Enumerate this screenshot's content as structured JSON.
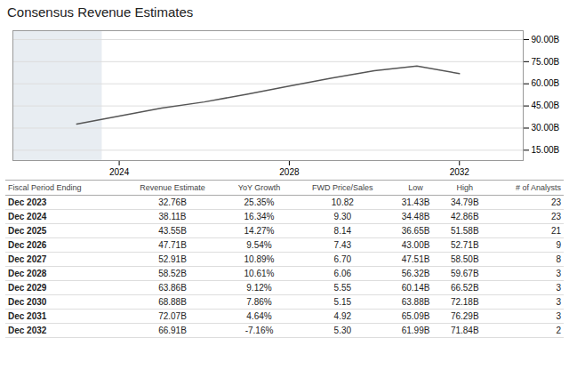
{
  "chart_data": {
    "type": "line",
    "title": "Consensus Revenue Estimates",
    "x": [
      2023,
      2024,
      2025,
      2026,
      2027,
      2028,
      2029,
      2030,
      2031,
      2032
    ],
    "values": [
      32.76,
      38.11,
      43.55,
      47.71,
      52.91,
      58.52,
      63.86,
      68.88,
      72.07,
      66.91
    ],
    "color": "#555555",
    "shaded_x": [
      2021.5,
      2023.6
    ],
    "xlim": [
      2021.5,
      2033.5
    ],
    "xticks": [
      2024,
      2028,
      2032
    ],
    "ylim": [
      8,
      96
    ],
    "yticks": [
      {
        "value": 15,
        "label": "15.00B"
      },
      {
        "value": 30,
        "label": "30.00B"
      },
      {
        "value": 45,
        "label": "45.00B"
      },
      {
        "value": 60,
        "label": "60.00B"
      },
      {
        "value": 75,
        "label": "75.00B"
      },
      {
        "value": 90,
        "label": "90.00B"
      }
    ],
    "grid": true,
    "table": {
      "headers": [
        "Fiscal Period Ending",
        "Revenue Estimate",
        "YoY Growth",
        "FWD Price/Sales",
        "Low",
        "High",
        "# of Analysts"
      ],
      "rows": [
        [
          "Dec 2023",
          "32.76B",
          "25.35%",
          "10.82",
          "31.43B",
          "34.79B",
          "23"
        ],
        [
          "Dec 2024",
          "38.11B",
          "16.34%",
          "9.30",
          "34.48B",
          "42.86B",
          "23"
        ],
        [
          "Dec 2025",
          "43.55B",
          "14.27%",
          "8.14",
          "36.65B",
          "51.58B",
          "21"
        ],
        [
          "Dec 2026",
          "47.71B",
          "9.54%",
          "7.43",
          "43.00B",
          "52.71B",
          "9"
        ],
        [
          "Dec 2027",
          "52.91B",
          "10.89%",
          "6.70",
          "47.51B",
          "58.50B",
          "8"
        ],
        [
          "Dec 2028",
          "58.52B",
          "10.61%",
          "6.06",
          "56.32B",
          "59.67B",
          "3"
        ],
        [
          "Dec 2029",
          "63.86B",
          "9.12%",
          "5.55",
          "60.14B",
          "66.52B",
          "3"
        ],
        [
          "Dec 2030",
          "68.88B",
          "7.86%",
          "5.15",
          "63.88B",
          "72.18B",
          "3"
        ],
        [
          "Dec 2031",
          "72.07B",
          "4.64%",
          "4.92",
          "65.09B",
          "76.29B",
          "3"
        ],
        [
          "Dec 2032",
          "66.91B",
          "-7.16%",
          "5.30",
          "61.99B",
          "71.84B",
          "2"
        ]
      ]
    }
  }
}
